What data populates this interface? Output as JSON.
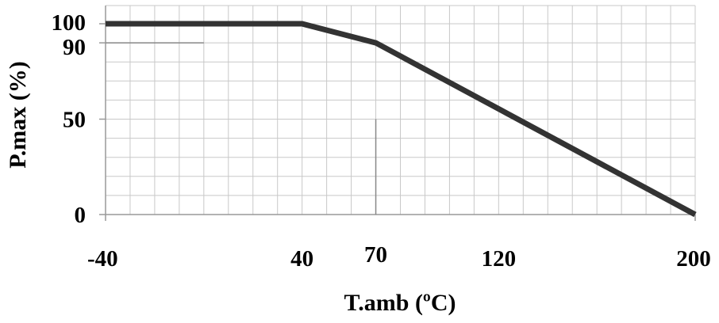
{
  "chart_data": {
    "type": "line",
    "title": "",
    "xlabel": "T.amb (ºC)",
    "ylabel": "P.max (%)",
    "xlim": [
      -40,
      200
    ],
    "ylim": [
      0,
      100
    ],
    "x_ticks": [
      -40,
      40,
      70,
      120,
      200
    ],
    "y_ticks": [
      0,
      50,
      90,
      100
    ],
    "grid": true,
    "series": [
      {
        "x": [
          -40,
          40,
          70,
          200
        ],
        "y": [
          100,
          100,
          90,
          0
        ]
      }
    ],
    "reference_lines": [
      {
        "axis": "y",
        "value": 90,
        "x_from": -40,
        "x_to": 0
      },
      {
        "axis": "x",
        "value": 70,
        "y_from": 0,
        "y_to": 50
      }
    ],
    "colors": {
      "series": "#333333",
      "grid": "#c8c8c8",
      "axis": "#999999"
    }
  }
}
